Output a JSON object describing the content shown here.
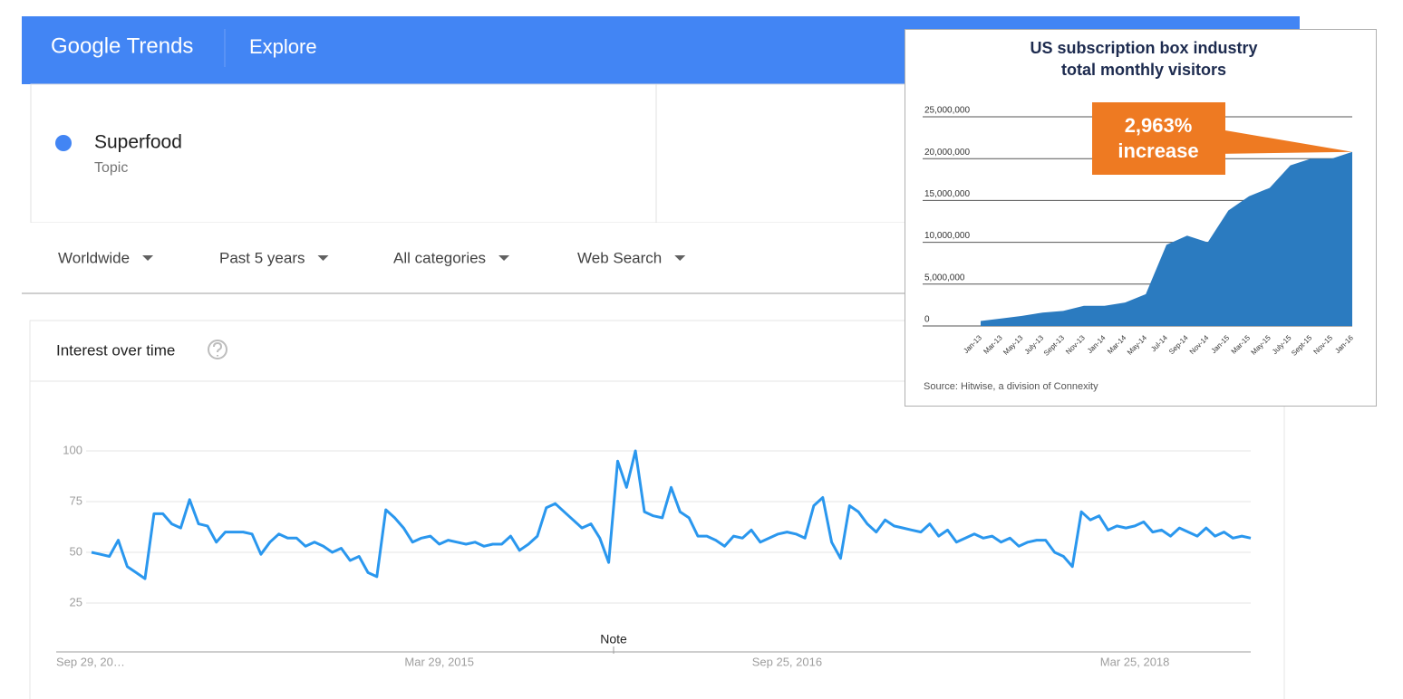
{
  "header": {
    "logo": "Google Trends",
    "section": "Explore"
  },
  "term": {
    "name": "Superfood",
    "kind": "Topic"
  },
  "filters": [
    "Worldwide",
    "Past 5 years",
    "All categories",
    "Web Search"
  ],
  "card_title": "Interest over time",
  "chart_data": [
    {
      "type": "line",
      "color": "#2a97ee",
      "annotation": "Note",
      "categories": [
        "Sep 29, 20…",
        null,
        null,
        null,
        null,
        null,
        null,
        null,
        null,
        null,
        null,
        null,
        null,
        null,
        null,
        null,
        null,
        null,
        null,
        null,
        null,
        null,
        null,
        null,
        null,
        null,
        null,
        null,
        null,
        null,
        null,
        null,
        null,
        null,
        null,
        null,
        null,
        null,
        null,
        "Mar 29, 2015",
        null,
        null,
        null,
        null,
        null,
        null,
        null,
        null,
        null,
        null,
        null,
        null,
        null,
        null,
        null,
        null,
        null,
        null,
        null,
        null,
        null,
        null,
        null,
        null,
        null,
        null,
        null,
        null,
        null,
        null,
        null,
        null,
        null,
        null,
        null,
        null,
        null,
        null,
        "Sep 25, 2016",
        null,
        null,
        null,
        null,
        null,
        null,
        null,
        null,
        null,
        null,
        null,
        null,
        null,
        null,
        null,
        null,
        null,
        null,
        null,
        null,
        null,
        null,
        null,
        null,
        null,
        null,
        null,
        null,
        null,
        null,
        null,
        null,
        null,
        null,
        null,
        null,
        null,
        null,
        "Mar 25, 2018",
        null,
        null,
        null,
        null,
        null,
        null,
        null,
        null,
        null,
        null,
        null,
        null,
        null
      ],
      "values": [
        50,
        49,
        48,
        56,
        43,
        40,
        37,
        69,
        69,
        64,
        62,
        76,
        64,
        63,
        55,
        60,
        60,
        60,
        59,
        49,
        55,
        59,
        57,
        57,
        53,
        55,
        53,
        50,
        52,
        46,
        48,
        40,
        38,
        71,
        67,
        62,
        55,
        57,
        58,
        54,
        56,
        55,
        54,
        55,
        53,
        54,
        54,
        58,
        51,
        54,
        58,
        72,
        74,
        70,
        66,
        62,
        64,
        57,
        45,
        95,
        82,
        100,
        70,
        68,
        67,
        82,
        70,
        67,
        58,
        58,
        56,
        53,
        58,
        57,
        61,
        55,
        57,
        59,
        60,
        59,
        57,
        73,
        77,
        55,
        47,
        73,
        70,
        64,
        60,
        66,
        63,
        62,
        61,
        60,
        64,
        58,
        61,
        55,
        57,
        59,
        57,
        58,
        55,
        57,
        53,
        55,
        56,
        56,
        50,
        48,
        43,
        70,
        66,
        68,
        61,
        63,
        62,
        63,
        65,
        60,
        61,
        58,
        62,
        60,
        58,
        62,
        58,
        60,
        57,
        58,
        57
      ],
      "ylim": [
        0,
        100
      ],
      "yticks": [
        25,
        50,
        75,
        100
      ],
      "grid": true
    },
    {
      "type": "area",
      "title": [
        "US subscription box industry",
        "total monthly visitors"
      ],
      "color": "#2b7bc0",
      "annotation": [
        "2,963%",
        "increase"
      ],
      "source": "Source: Hitwise, a division of Connexity",
      "categories": [
        "Jan-13",
        "Mar-13",
        "May-13",
        "July-13",
        "Sept-13",
        "Nov-13",
        "Jan-14",
        "Mar-14",
        "May-14",
        "Jul-14",
        "Sep-14",
        "Nov-14",
        "Jan-15",
        "Mar-15",
        "May-15",
        "July-15",
        "Sept-15",
        "Nov-15",
        "Jan-16"
      ],
      "values": [
        600000,
        900000,
        1200000,
        1600000,
        1800000,
        2400000,
        2400000,
        2800000,
        3800000,
        9700000,
        10800000,
        10000000,
        13800000,
        15500000,
        16500000,
        19200000,
        20000000,
        20000000,
        20800000
      ],
      "ylim": [
        0,
        25000000
      ],
      "yticks": [
        0,
        {
          "value": 5000000,
          "label": "5,000,000"
        },
        {
          "value": 10000000,
          "label": "10,000,000"
        },
        {
          "value": 15000000,
          "label": "15,000,000"
        },
        {
          "value": 20000000,
          "label": "20,000,000"
        },
        {
          "value": 25000000,
          "label": "25,000,000"
        }
      ],
      "grid": true
    }
  ]
}
